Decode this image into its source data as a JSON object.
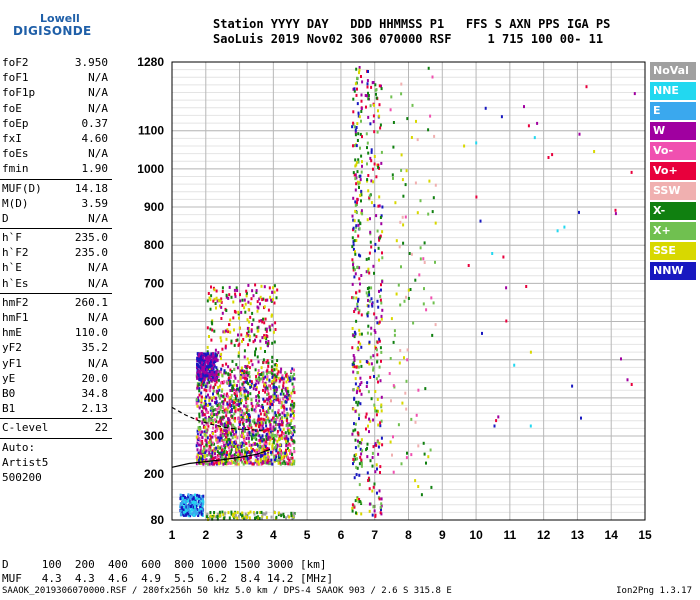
{
  "logo": {
    "line1": "Lowell",
    "line2": "DIGISONDE"
  },
  "header": {
    "labels": "Station YYYY DAY   DDD HHMMSS P1   FFS S AXN PPS IGA PS",
    "values": "SaoLuis 2019 Nov02 306 070000 RSF     1 715 100 00- 11"
  },
  "params_group1": [
    {
      "name": "foF2",
      "value": "3.950"
    },
    {
      "name": "foF1",
      "value": "N/A"
    },
    {
      "name": "foF1p",
      "value": "N/A"
    },
    {
      "name": "foE",
      "value": "N/A"
    },
    {
      "name": "foEp",
      "value": "0.37"
    },
    {
      "name": "fxI",
      "value": "4.60"
    },
    {
      "name": "foEs",
      "value": "N/A"
    },
    {
      "name": "fmin",
      "value": "1.90"
    }
  ],
  "params_group2": [
    {
      "name": "MUF(D)",
      "value": "14.18"
    },
    {
      "name": "M(D)",
      "value": "3.59"
    },
    {
      "name": "D",
      "value": "N/A"
    }
  ],
  "params_group3": [
    {
      "name": "h`F",
      "value": "235.0"
    },
    {
      "name": "h`F2",
      "value": "235.0"
    },
    {
      "name": "h`E",
      "value": "N/A"
    },
    {
      "name": "h`Es",
      "value": "N/A"
    }
  ],
  "params_group4": [
    {
      "name": "hmF2",
      "value": "260.1"
    },
    {
      "name": "hmF1",
      "value": "N/A"
    },
    {
      "name": "hmE",
      "value": "110.0"
    },
    {
      "name": "yF2",
      "value": "35.2"
    },
    {
      "name": "yF1",
      "value": "N/A"
    },
    {
      "name": "yE",
      "value": "20.0"
    },
    {
      "name": "B0",
      "value": "34.8"
    },
    {
      "name": "B1",
      "value": "2.13"
    }
  ],
  "clevel": {
    "name": "C-level",
    "value": "22"
  },
  "auto": {
    "line1": "Auto:",
    "line2": "Artist5",
    "line3": "500200"
  },
  "legend": [
    {
      "label": "NoVal",
      "color": "#a0a0a0"
    },
    {
      "label": "NNE",
      "color": "#22d8f0"
    },
    {
      "label": "E",
      "color": "#3aa8ee"
    },
    {
      "label": "W",
      "color": "#a000a0"
    },
    {
      "label": "Vo-",
      "color": "#f050b0"
    },
    {
      "label": "Vo+",
      "color": "#e8003c"
    },
    {
      "label": "SSW",
      "color": "#f0b0b0"
    },
    {
      "label": "X-",
      "color": "#108010"
    },
    {
      "label": "X+",
      "color": "#70c050"
    },
    {
      "label": "SSE",
      "color": "#d8d800"
    },
    {
      "label": "NNW",
      "color": "#1818c0"
    }
  ],
  "dtable": {
    "row1": "D     100  200  400  600  800 1000 1500 3000 [km]",
    "row2": "MUF   4.3  4.3  4.6  4.9  5.5  6.2  8.4 14.2 [MHz]"
  },
  "footer": "SAAOK_2019306070000.RSF / 280fx256h 50 kHz 5.0 km / DPS-4 SAAOK 903 / 2.6 S 315.8 E",
  "version": "Ion2Png 1.3.17",
  "chart_data": {
    "type": "scatter",
    "title": "",
    "xlabel": "",
    "ylabel": "",
    "xlim": [
      1,
      15
    ],
    "ylim": [
      80,
      1280
    ],
    "x_ticks": [
      1,
      2,
      3,
      4,
      5,
      6,
      7,
      8,
      9,
      10,
      11,
      12,
      13,
      14,
      15
    ],
    "y_ticks": [
      80,
      200,
      300,
      400,
      500,
      600,
      700,
      800,
      900,
      1000,
      1100,
      1280
    ],
    "grid": true,
    "trace_series": [
      {
        "x": [
          1.0,
          1.5,
          2.0,
          2.5,
          3.0,
          3.5,
          3.9
        ],
        "y": [
          218,
          228,
          233,
          238,
          244,
          252,
          265
        ]
      },
      {
        "x": [
          1.0,
          1.4,
          1.8,
          2.2,
          2.6,
          3.0,
          3.4,
          3.7
        ],
        "y": [
          375,
          355,
          340,
          330,
          322,
          318,
          316,
          315
        ]
      }
    ],
    "echo_regions": [
      {
        "x": [
          1.7,
          4.6
        ],
        "y": [
          230,
          480
        ],
        "density": "high",
        "colors": [
          "Vo+",
          "Vo-",
          "SSE",
          "X-",
          "W",
          "NNW",
          "X+"
        ]
      },
      {
        "x": [
          2.0,
          4.1
        ],
        "y": [
          480,
          700
        ],
        "density": "medium",
        "colors": [
          "Vo+",
          "W",
          "SSE",
          "X-"
        ]
      },
      {
        "x": [
          1.7,
          2.3
        ],
        "y": [
          450,
          520
        ],
        "density": "medium",
        "colors": [
          "NNW",
          "W"
        ]
      },
      {
        "x": [
          1.2,
          1.9
        ],
        "y": [
          95,
          150
        ],
        "density": "medium",
        "colors": [
          "NNE",
          "E",
          "NNW"
        ]
      },
      {
        "x": [
          2.0,
          4.6
        ],
        "y": [
          85,
          105
        ],
        "density": "low",
        "colors": [
          "NoVal",
          "SSE",
          "X-"
        ]
      },
      {
        "x": [
          6.3,
          6.6
        ],
        "y": [
          85,
          1270
        ],
        "density": "medium",
        "colors": [
          "X-",
          "NNW",
          "W",
          "Vo+",
          "SSE",
          "X+"
        ]
      },
      {
        "x": [
          6.7,
          7.2
        ],
        "y": [
          85,
          1270
        ],
        "density": "medium",
        "colors": [
          "Vo+",
          "W",
          "SSE",
          "NNW",
          "X-",
          "X+"
        ]
      },
      {
        "x": [
          7.4,
          8.8
        ],
        "y": [
          150,
          1280
        ],
        "density": "low",
        "colors": [
          "SSE",
          "X+",
          "Vo-",
          "X-",
          "SSW"
        ]
      },
      {
        "x": [
          9.6,
          14.9
        ],
        "y": [
          300,
          1230
        ],
        "density": "sparse",
        "colors": [
          "NNE",
          "SSE",
          "NNW",
          "Vo+",
          "W"
        ]
      }
    ]
  }
}
